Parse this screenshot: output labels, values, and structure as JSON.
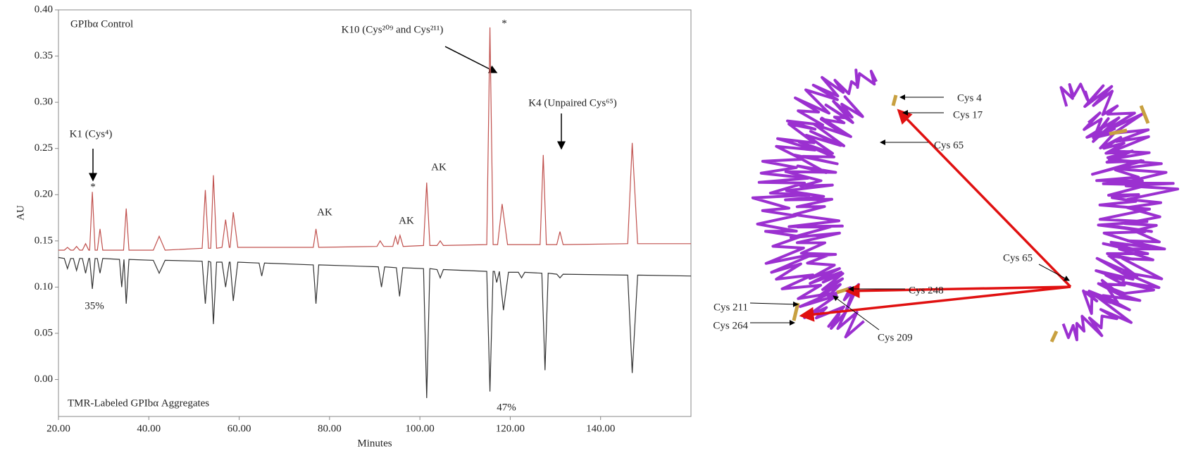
{
  "chart_data": {
    "type": "line",
    "x_label": "Minutes",
    "y_label": "AU",
    "xlim": [
      20,
      160
    ],
    "xticks": [
      {
        "value": 20,
        "label": "20.00"
      },
      {
        "value": 40,
        "label": "40.00"
      },
      {
        "value": 60,
        "label": "60.00"
      },
      {
        "value": 80,
        "label": "80.00"
      },
      {
        "value": 100,
        "label": "100.00"
      },
      {
        "value": 120,
        "label": "120.00"
      },
      {
        "value": 140,
        "label": "140.00"
      }
    ],
    "ylim": [
      -0.04,
      0.4
    ],
    "yticks": [
      {
        "value": 0,
        "label": "0.00"
      },
      {
        "value": 0.05,
        "label": "0.05"
      },
      {
        "value": 0.1,
        "label": "0.10"
      },
      {
        "value": 0.15,
        "label": "0.15"
      },
      {
        "value": 0.2,
        "label": "0.20"
      },
      {
        "value": 0.25,
        "label": "0.25"
      },
      {
        "value": 0.3,
        "label": "0.30"
      },
      {
        "value": 0.35,
        "label": "0.35"
      },
      {
        "value": 0.4,
        "label": "0.40"
      }
    ],
    "series": [
      {
        "name": "GPIbα Control",
        "color": "#c0504d",
        "x": [
          20,
          21.3,
          22,
          22.7,
          23.3,
          24,
          24.7,
          25.3,
          26,
          26.7,
          26.9,
          27.5,
          28.1,
          28.6,
          29.2,
          29.8,
          34.4,
          35,
          35.6,
          41,
          42.3,
          43.6,
          51.8,
          52.5,
          53.2,
          53.7,
          54.3,
          55,
          56.2,
          57,
          57.8,
          58,
          58.7,
          59.7,
          76.4,
          77,
          77.6,
          90.5,
          91.2,
          92,
          94,
          94.6,
          95.1,
          95.6,
          96.3,
          100.8,
          101.5,
          102.2,
          103.8,
          104.5,
          105.2,
          114.8,
          115.5,
          116.2,
          117.2,
          118.2,
          119.4,
          126.6,
          127.3,
          128,
          130.3,
          131,
          131.7,
          146,
          147,
          148.2,
          160
        ],
        "values": [
          0.14,
          0.14,
          0.143,
          0.14,
          0.14,
          0.144,
          0.14,
          0.14,
          0.147,
          0.14,
          0.14,
          0.203,
          0.14,
          0.14,
          0.163,
          0.14,
          0.14,
          0.185,
          0.14,
          0.14,
          0.155,
          0.14,
          0.142,
          0.205,
          0.142,
          0.142,
          0.221,
          0.142,
          0.143,
          0.173,
          0.143,
          0.143,
          0.181,
          0.143,
          0.143,
          0.163,
          0.143,
          0.144,
          0.15,
          0.144,
          0.144,
          0.155,
          0.146,
          0.156,
          0.144,
          0.145,
          0.213,
          0.145,
          0.145,
          0.15,
          0.145,
          0.146,
          0.381,
          0.146,
          0.146,
          0.19,
          0.146,
          0.146,
          0.243,
          0.146,
          0.146,
          0.16,
          0.146,
          0.147,
          0.256,
          0.147,
          0.147
        ]
      },
      {
        "name": "TMR-Labeled GPIbα Aggregates",
        "color": "#333333",
        "x": [
          20,
          21.3,
          22,
          22.7,
          23.3,
          24,
          24.7,
          25.3,
          26,
          26.7,
          26.9,
          27.5,
          28.1,
          28.6,
          29.2,
          29.8,
          33.5,
          34,
          34.5,
          35,
          35.6,
          41,
          42.3,
          43.6,
          51.8,
          52.5,
          53.2,
          53.7,
          54.3,
          55,
          56.2,
          57,
          57.8,
          58,
          58.7,
          59.7,
          64.4,
          65,
          65.6,
          76.4,
          77,
          77.6,
          90.8,
          91.5,
          92.2,
          94.8,
          95.5,
          96.2,
          100.8,
          101.5,
          102.2,
          103.8,
          104.5,
          105.2,
          114.8,
          115.5,
          116.2,
          116.5,
          117,
          117.6,
          118.5,
          119.6,
          121.8,
          122.5,
          123.2,
          127,
          127.7,
          128.4,
          130.3,
          131,
          131.7,
          146,
          147,
          148.2,
          160
        ],
        "values": [
          0.132,
          0.131,
          0.12,
          0.131,
          0.131,
          0.118,
          0.131,
          0.131,
          0.115,
          0.131,
          0.131,
          0.098,
          0.131,
          0.131,
          0.115,
          0.131,
          0.13,
          0.1,
          0.13,
          0.082,
          0.13,
          0.129,
          0.115,
          0.129,
          0.128,
          0.082,
          0.128,
          0.127,
          0.06,
          0.127,
          0.127,
          0.1,
          0.127,
          0.127,
          0.085,
          0.127,
          0.126,
          0.112,
          0.126,
          0.124,
          0.082,
          0.124,
          0.122,
          0.1,
          0.122,
          0.121,
          0.09,
          0.121,
          0.12,
          -0.02,
          0.12,
          0.119,
          0.11,
          0.119,
          0.117,
          -0.013,
          0.117,
          0.117,
          0.105,
          0.117,
          0.075,
          0.116,
          0.116,
          0.11,
          0.116,
          0.115,
          0.01,
          0.115,
          0.114,
          0.11,
          0.114,
          0.113,
          0.007,
          0.113,
          0.112
        ]
      }
    ],
    "annotations": [
      "K1 (Cys⁴)",
      "K10 (Cys²⁰⁹ and Cys²¹¹)",
      "K4 (Unpaired Cys⁶⁵)",
      "AK",
      "AK",
      "AK",
      "*",
      "*",
      "35%",
      "47%"
    ]
  },
  "structure": {
    "labels": [
      "Cys 4",
      "Cys 17",
      "Cys 65",
      "Cys 65",
      "Cys 248",
      "Cys 211",
      "Cys 264",
      "Cys 209"
    ]
  }
}
